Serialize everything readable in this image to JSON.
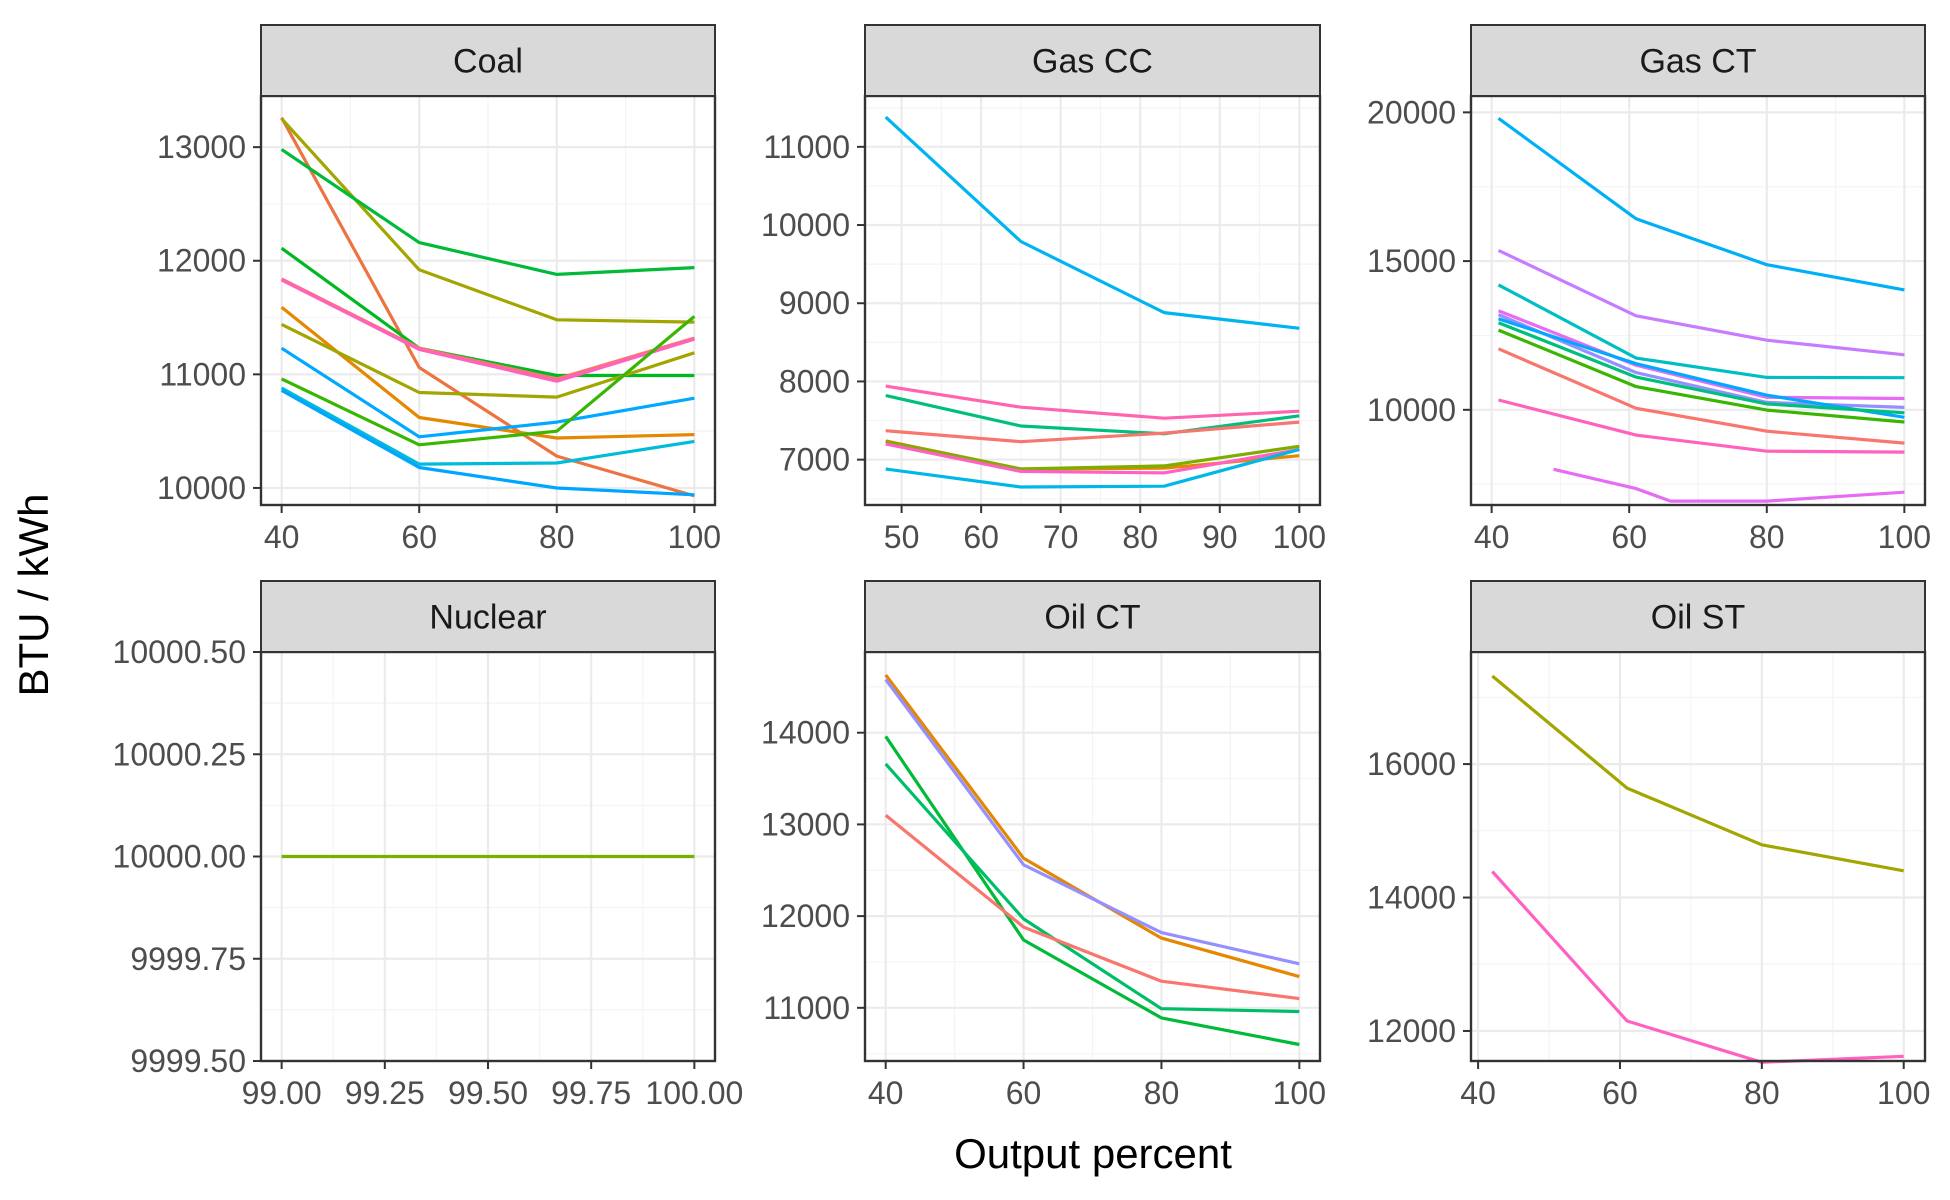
{
  "xlabel": "Output percent",
  "ylabel": "BTU / kWh",
  "chart_data": [
    {
      "type": "line",
      "panel": "Coal",
      "xlim": [
        37,
        103
      ],
      "ylim": [
        9850,
        13450
      ],
      "xticks": [
        40,
        60,
        80,
        100
      ],
      "xtick_labels": [
        "40",
        "60",
        "80",
        "100"
      ],
      "yticks": [
        10000,
        11000,
        12000,
        13000
      ],
      "ytick_labels": [
        "10000",
        "11000",
        "12000",
        "13000"
      ],
      "series": [
        {
          "color": "#ED7341",
          "x": [
            40,
            60,
            80,
            100
          ],
          "y": [
            13260,
            11060,
            10280,
            9930
          ]
        },
        {
          "color": "#A3A500",
          "x": [
            40,
            60,
            80,
            100
          ],
          "y": [
            13250,
            11920,
            11480,
            11460
          ]
        },
        {
          "color": "#00BA38",
          "x": [
            40,
            60,
            80,
            100
          ],
          "y": [
            12980,
            12160,
            11880,
            11940
          ]
        },
        {
          "color": "#00B81F",
          "x": [
            40,
            60,
            80,
            100
          ],
          "y": [
            12110,
            11230,
            10990,
            10990
          ]
        },
        {
          "color": "#F8766D",
          "x": [
            40,
            60,
            80,
            100
          ],
          "y": [
            11840,
            11230,
            10960,
            11320
          ]
        },
        {
          "color": "#FF62BC",
          "x": [
            40,
            60,
            80,
            100
          ],
          "y": [
            11830,
            11220,
            10940,
            11310
          ]
        },
        {
          "color": "#E58700",
          "x": [
            40,
            60,
            80,
            100
          ],
          "y": [
            11590,
            10620,
            10440,
            10470
          ]
        },
        {
          "color": "#A3A500",
          "x": [
            40,
            60,
            80,
            100
          ],
          "y": [
            11440,
            10840,
            10800,
            11190
          ]
        },
        {
          "color": "#00A9FF",
          "x": [
            40,
            60,
            80,
            100
          ],
          "y": [
            11230,
            10450,
            10580,
            10790
          ]
        },
        {
          "color": "#39B600",
          "x": [
            40,
            60,
            80,
            100
          ],
          "y": [
            10960,
            10380,
            10500,
            11510
          ]
        },
        {
          "color": "#00BCD8",
          "x": [
            40,
            60,
            80,
            100
          ],
          "y": [
            10880,
            10210,
            10220,
            10410
          ]
        },
        {
          "color": "#00A5FF",
          "x": [
            40,
            60,
            80,
            100
          ],
          "y": [
            10860,
            10180,
            10000,
            9940
          ]
        }
      ]
    },
    {
      "type": "line",
      "panel": "Gas CC",
      "xlim": [
        45.4,
        102.6
      ],
      "ylim": [
        6420,
        11650
      ],
      "xticks": [
        50,
        60,
        70,
        80,
        90,
        100
      ],
      "xtick_labels": [
        "50",
        "60",
        "70",
        "80",
        "90",
        "100"
      ],
      "yticks": [
        7000,
        8000,
        9000,
        10000,
        11000
      ],
      "ytick_labels": [
        "7000",
        "8000",
        "9000",
        "10000",
        "11000"
      ],
      "series": [
        {
          "color": "#00B4EF",
          "x": [
            48,
            65,
            83,
            100
          ],
          "y": [
            11380,
            9790,
            8880,
            8680
          ]
        },
        {
          "color": "#FF64B0",
          "x": [
            48,
            65,
            83,
            100
          ],
          "y": [
            7940,
            7670,
            7530,
            7620
          ]
        },
        {
          "color": "#00BF7D",
          "x": [
            48,
            65,
            83,
            100
          ],
          "y": [
            7820,
            7430,
            7330,
            7560
          ]
        },
        {
          "color": "#F8766D",
          "x": [
            48,
            65,
            83,
            100
          ],
          "y": [
            7370,
            7230,
            7340,
            7480
          ]
        },
        {
          "color": "#E58700",
          "x": [
            48,
            65,
            83,
            100
          ],
          "y": [
            7240,
            6880,
            6890,
            7050
          ]
        },
        {
          "color": "#7CAE00",
          "x": [
            48,
            65,
            83,
            100
          ],
          "y": [
            7230,
            6880,
            6920,
            7170
          ]
        },
        {
          "color": "#FF61C3",
          "x": [
            48,
            65,
            83,
            100
          ],
          "y": [
            7200,
            6850,
            6830,
            7130
          ]
        },
        {
          "color": "#00B8E7",
          "x": [
            48,
            65,
            83,
            100
          ],
          "y": [
            6880,
            6650,
            6660,
            7130
          ]
        }
      ]
    },
    {
      "type": "line",
      "panel": "Gas CT",
      "xlim": [
        37,
        103
      ],
      "ylim": [
        6800,
        20550
      ],
      "xticks": [
        40,
        60,
        80,
        100
      ],
      "xtick_labels": [
        "40",
        "60",
        "80",
        "100"
      ],
      "yticks": [
        10000,
        15000,
        20000
      ],
      "ytick_labels": [
        "10000",
        "15000",
        "20000"
      ],
      "series": [
        {
          "color": "#00B0F6",
          "x": [
            41,
            61,
            80,
            100
          ],
          "y": [
            19800,
            16420,
            14880,
            14030
          ]
        },
        {
          "color": "#C77CFF",
          "x": [
            41,
            61,
            80,
            100
          ],
          "y": [
            15360,
            13160,
            12340,
            11850
          ]
        },
        {
          "color": "#00BFC4",
          "x": [
            41,
            61,
            80,
            100
          ],
          "y": [
            14200,
            11740,
            11090,
            11080
          ]
        },
        {
          "color": "#E76BF3",
          "x": [
            41,
            61,
            80,
            100
          ],
          "y": [
            13330,
            11500,
            10420,
            10380
          ]
        },
        {
          "color": "#9590FF",
          "x": [
            41,
            61,
            80,
            100
          ],
          "y": [
            13200,
            11250,
            10250,
            10080
          ]
        },
        {
          "color": "#00A9FF",
          "x": [
            41,
            61,
            80,
            100
          ],
          "y": [
            13060,
            11550,
            10490,
            9750
          ]
        },
        {
          "color": "#00BF7D",
          "x": [
            41,
            61,
            80,
            100
          ],
          "y": [
            12930,
            11100,
            10200,
            9900
          ]
        },
        {
          "color": "#39B600",
          "x": [
            41,
            61,
            80,
            100
          ],
          "y": [
            12680,
            10780,
            9990,
            9590
          ]
        },
        {
          "color": "#F8766D",
          "x": [
            41,
            61,
            80,
            100
          ],
          "y": [
            12050,
            10050,
            9280,
            8880
          ]
        },
        {
          "color": "#FF62BC",
          "x": [
            41,
            61,
            80,
            100
          ],
          "y": [
            10330,
            9150,
            8610,
            8580
          ]
        },
        {
          "color": "#E76BF3",
          "x": [
            49,
            61,
            66,
            80,
            100
          ],
          "y": [
            8000,
            7350,
            6930,
            6930,
            7230
          ]
        }
      ]
    },
    {
      "type": "line",
      "panel": "Nuclear",
      "xlim": [
        98.95,
        100.05
      ],
      "ylim": [
        9999.5,
        10000.5
      ],
      "xticks": [
        99.0,
        99.25,
        99.5,
        99.75,
        100.0
      ],
      "xtick_labels": [
        "99.00",
        "99.25",
        "99.50",
        "99.75",
        "100.00"
      ],
      "yticks": [
        9999.5,
        9999.75,
        10000.0,
        10000.25,
        10000.5
      ],
      "ytick_labels": [
        "9999.50",
        "9999.75",
        "10000.00",
        "10000.25",
        "10000.50"
      ],
      "series": [
        {
          "color": "#7CAE00",
          "x": [
            99.0,
            100.0
          ],
          "y": [
            10000.0,
            10000.0
          ]
        }
      ]
    },
    {
      "type": "line",
      "panel": "Oil CT",
      "xlim": [
        37,
        103
      ],
      "ylim": [
        10420,
        14880
      ],
      "xticks": [
        40,
        60,
        80,
        100
      ],
      "xtick_labels": [
        "40",
        "60",
        "80",
        "100"
      ],
      "yticks": [
        11000,
        12000,
        13000,
        14000
      ],
      "ytick_labels": [
        "11000",
        "12000",
        "13000",
        "14000"
      ],
      "series": [
        {
          "color": "#E58700",
          "x": [
            40,
            60,
            80,
            100
          ],
          "y": [
            14630,
            12630,
            11760,
            11340
          ]
        },
        {
          "color": "#9590FF",
          "x": [
            40,
            60,
            80,
            100
          ],
          "y": [
            14580,
            12560,
            11820,
            11480
          ]
        },
        {
          "color": "#00BA38",
          "x": [
            40,
            60,
            80,
            100
          ],
          "y": [
            13960,
            11740,
            10890,
            10600
          ]
        },
        {
          "color": "#00BE67",
          "x": [
            40,
            60,
            80,
            100
          ],
          "y": [
            13660,
            11970,
            10990,
            10960
          ]
        },
        {
          "color": "#F8766D",
          "x": [
            40,
            60,
            80,
            100
          ],
          "y": [
            13100,
            11880,
            11290,
            11100
          ]
        }
      ]
    },
    {
      "type": "line",
      "panel": "Oil ST",
      "xlim": [
        39,
        103
      ],
      "ylim": [
        11550,
        17680
      ],
      "xticks": [
        40,
        60,
        80,
        100
      ],
      "xtick_labels": [
        "40",
        "60",
        "80",
        "100"
      ],
      "yticks": [
        12000,
        14000,
        16000
      ],
      "ytick_labels": [
        "12000",
        "14000",
        "16000"
      ],
      "series": [
        {
          "color": "#A3A500",
          "x": [
            42,
            61,
            80,
            100
          ],
          "y": [
            17320,
            15640,
            14790,
            14400
          ]
        },
        {
          "color": "#FF61C3",
          "x": [
            42,
            61,
            80,
            100
          ],
          "y": [
            14390,
            12150,
            11530,
            11620
          ]
        }
      ]
    }
  ]
}
